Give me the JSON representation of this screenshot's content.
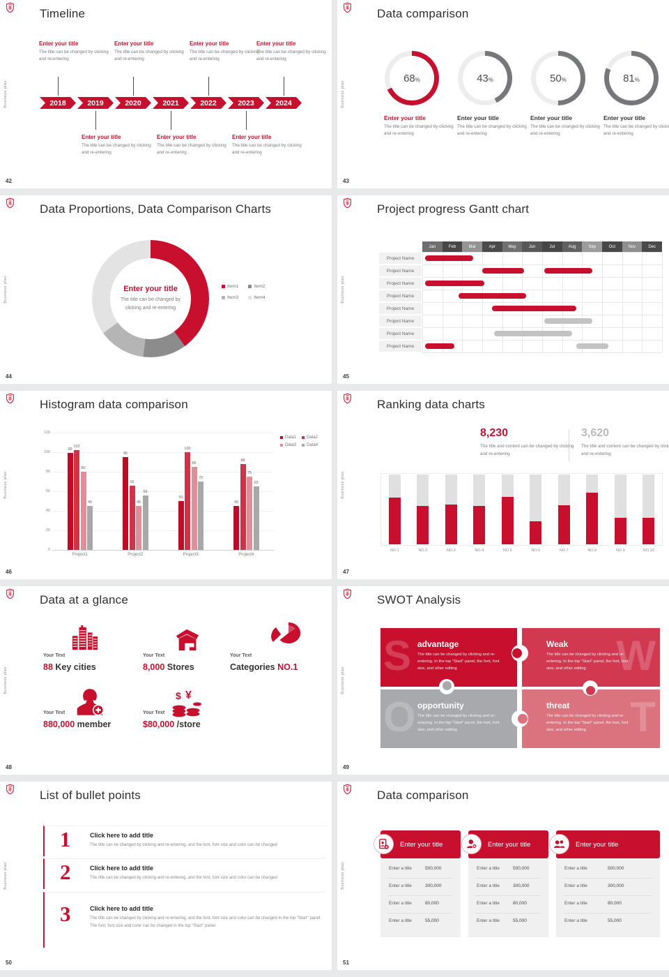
{
  "common": {
    "vertical_label": "Business plan",
    "enter_title": "Enter your title",
    "desc": "The title can be changed by clicking and re-entering",
    "colors": {
      "brand": "#c8102e",
      "arc_gray": "#76777a"
    }
  },
  "slides": {
    "timeline": {
      "number": "42",
      "title": "Timeline",
      "years": [
        "2018",
        "2019",
        "2020",
        "2021",
        "2022",
        "2023",
        "2024"
      ],
      "top_year_indices": [
        0,
        2,
        4,
        6
      ],
      "bottom_year_indices": [
        1,
        3,
        5
      ]
    },
    "donuts": {
      "number": "43",
      "title": "Data comparison",
      "chart_data": {
        "type": "donut-gauges",
        "unit": "%",
        "values": [
          68,
          43,
          50,
          81
        ],
        "highlight_index": 0,
        "highlight_color": "#c8102e",
        "arc_color": "#76777a",
        "track_color": "#ededed"
      }
    },
    "pie": {
      "number": "44",
      "title": "Data Proportions, Data Comparison Charts",
      "chart_data": {
        "type": "pie",
        "legend": [
          "Item1",
          "Item2",
          "Item3",
          "Item4"
        ],
        "values": [
          40,
          12,
          13,
          35
        ],
        "colors": [
          "#c8102e",
          "#8c8c8c",
          "#b5b5b5",
          "#e3e3e3"
        ]
      }
    },
    "gantt": {
      "number": "45",
      "title": "Project progress Gantt chart",
      "months": [
        "Jan",
        "Feb",
        "Mar",
        "Apr",
        "May",
        "Jun",
        "Jul",
        "Aug",
        "Sep",
        "Oct",
        "Nov",
        "Dec"
      ],
      "month_shades": [
        "#6e6e6e",
        "#474747",
        "#949494",
        "#4a4a4a",
        "#707070",
        "#585858",
        "#474747",
        "#616161",
        "#9c9c9c",
        "#474747",
        "#8e8e8e",
        "#4a4a4a"
      ],
      "row_label": "Project Name",
      "row_count": 8,
      "bars": [
        {
          "row": 0,
          "start": 0.15,
          "end": 2.55,
          "color": "#c8102e"
        },
        {
          "row": 1,
          "start": 3.0,
          "end": 5.1,
          "color": "#c8102e"
        },
        {
          "row": 1,
          "start": 6.1,
          "end": 8.5,
          "color": "#c8102e"
        },
        {
          "row": 2,
          "start": 0.15,
          "end": 3.1,
          "color": "#c8102e"
        },
        {
          "row": 3,
          "start": 1.8,
          "end": 5.2,
          "color": "#c8102e"
        },
        {
          "row": 4,
          "start": 3.5,
          "end": 7.7,
          "color": "#c8102e"
        },
        {
          "row": 5,
          "start": 6.1,
          "end": 8.5,
          "color": "#c3c3c3"
        },
        {
          "row": 6,
          "start": 3.6,
          "end": 7.5,
          "color": "#c3c3c3"
        },
        {
          "row": 7,
          "start": 0.15,
          "end": 1.6,
          "color": "#c8102e"
        },
        {
          "row": 7,
          "start": 7.7,
          "end": 9.3,
          "color": "#c3c3c3"
        }
      ]
    },
    "histogram": {
      "number": "46",
      "title": "Histogram data comparison",
      "chart_data": {
        "type": "bar",
        "categories": [
          "Project1",
          "Project2",
          "Project3",
          "Project4"
        ],
        "series": [
          {
            "name": "Data1",
            "color": "#c00a26",
            "values": [
              99,
              95,
              50,
              45
            ]
          },
          {
            "name": "Data2",
            "color": "#ce3448",
            "values": [
              102,
              66,
              100,
              88
            ]
          },
          {
            "name": "Data3",
            "color": "#e08e9a",
            "values": [
              80,
              45,
              85,
              75
            ]
          },
          {
            "name": "Data4",
            "color": "#a8a8a8",
            "values": [
              45,
              56,
              70,
              65
            ]
          }
        ],
        "ylim": [
          0,
          120
        ],
        "yticks": [
          0,
          20,
          40,
          60,
          80,
          100,
          120
        ]
      }
    },
    "ranking": {
      "number": "47",
      "title": "Ranking data charts",
      "stat1": {
        "value": "8,230",
        "desc": "The title and content can be changed by clicking and re-entering"
      },
      "stat2": {
        "value": "3,620",
        "desc": "The title and content can be changed by clicking and re-entering"
      },
      "chart_data": {
        "type": "bar",
        "categories": [
          "NO.1",
          "NO.2",
          "NO.3",
          "NO.4",
          "NO.5",
          "NO.6",
          "NO.7",
          "NO.8",
          "NO.9",
          "NO.10"
        ],
        "values_pct": [
          67,
          55,
          57,
          55,
          68,
          33,
          56,
          74,
          38,
          38
        ],
        "bar_color": "#c8102e",
        "track_color": "#e0e0e0"
      }
    },
    "glance": {
      "number": "48",
      "title": "Data at a glance",
      "item_label": "Your Text",
      "items": [
        {
          "icon": "city-icon",
          "parts": [
            {
              "t": "88",
              "accent": true
            },
            {
              "t": " Key cities",
              "accent": false
            }
          ]
        },
        {
          "icon": "store-icon",
          "parts": [
            {
              "t": "8,000",
              "accent": true
            },
            {
              "t": " Stores",
              "accent": false
            }
          ]
        },
        {
          "icon": "pie-icon",
          "parts": [
            {
              "t": "Categories ",
              "accent": false
            },
            {
              "t": "NO.1",
              "accent": true
            }
          ]
        },
        {
          "icon": "member-icon",
          "parts": [
            {
              "t": "880,000",
              "accent": true
            },
            {
              "t": " member",
              "accent": false
            }
          ]
        },
        {
          "icon": "coins-icon",
          "parts": [
            {
              "t": "$80,000",
              "accent": true
            },
            {
              "t": " /store",
              "accent": false
            }
          ]
        }
      ]
    },
    "swot": {
      "number": "49",
      "title": "SWOT Analysis",
      "body": "The title can be changed by clicking and re-entering. In the top \"Start\" panel, the font, font size, and other editing",
      "tiles": [
        {
          "letter": "S",
          "title": "advantage",
          "color": "#c8102e"
        },
        {
          "letter": "W",
          "title": "Weak",
          "color": "#d23850"
        },
        {
          "letter": "O",
          "title": "opportunity",
          "color": "#a7a9ac"
        },
        {
          "letter": "T",
          "title": "threat",
          "color": "#db737f"
        }
      ]
    },
    "bullets": {
      "number": "50",
      "title": "List of bullet points",
      "items": [
        {
          "num": "1",
          "title": "Click here to add title",
          "desc": "The title can be changed by clicking and re-entering, and the font, font size and color can be changed"
        },
        {
          "num": "2",
          "title": "Click here to add title",
          "desc": "The title can be changed by clicking and re-entering, and the font, font size and color can be changed"
        },
        {
          "num": "3",
          "title": "Click here to add title",
          "desc": "The title can be changed by clicking and re-entering, and the font, font size and color can be changed in the top \"Start\" panel. The font, font size and color can be changed in the top \"Start\" panel."
        }
      ]
    },
    "cards": {
      "number": "51",
      "title": "Data comparison",
      "header_title": "Enter your title",
      "row_label": "Enter a title",
      "row_values": [
        "500,000",
        "300,000",
        "80,000",
        "55,000"
      ],
      "card_icons": [
        "contact-card-icon",
        "person-add-icon",
        "people-icon"
      ]
    }
  }
}
